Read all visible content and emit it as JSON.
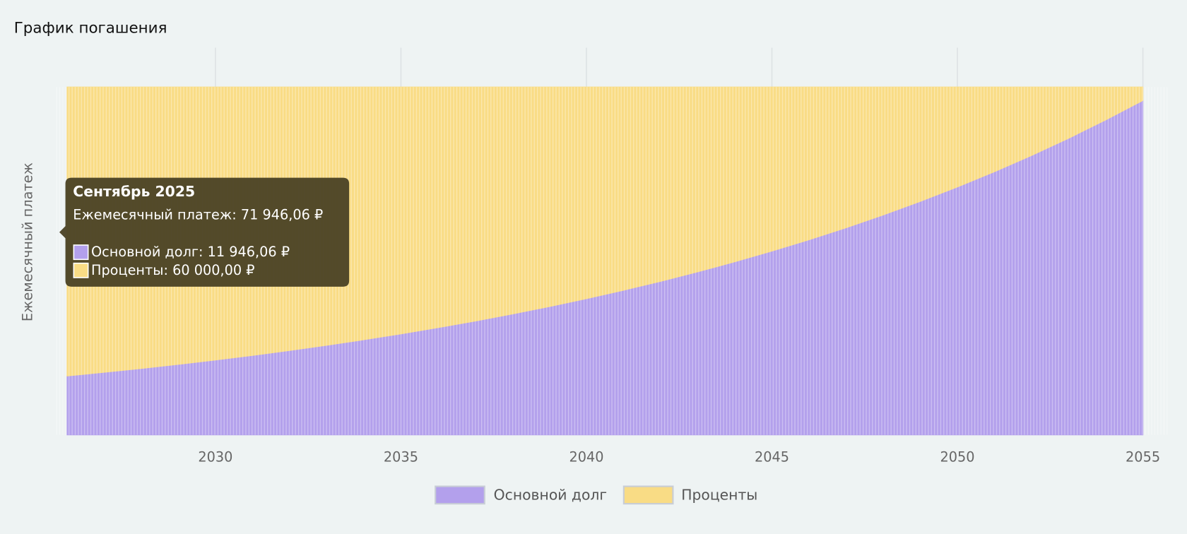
{
  "chart_data": {
    "type": "area",
    "stacked": true,
    "title": "График погашения",
    "y_label": "Ежемесячный платеж",
    "x": [
      2026,
      2027,
      2028,
      2029,
      2030,
      2031,
      2032,
      2033,
      2034,
      2035,
      2036,
      2037,
      2038,
      2039,
      2040,
      2041,
      2042,
      2043,
      2044,
      2045,
      2046,
      2047,
      2048,
      2049,
      2050,
      2051,
      2052,
      2053,
      2054,
      2055
    ],
    "series": [
      {
        "name": "Основной долг",
        "color": "#b3a0ec",
        "values": [
          12187,
          12939,
          13737,
          14584,
          15484,
          16439,
          17453,
          18530,
          19673,
          20886,
          22174,
          23542,
          24994,
          26536,
          28173,
          29911,
          31756,
          33715,
          35795,
          38003,
          40347,
          42836,
          45478,
          48283,
          51261,
          54423,
          57780,
          61344,
          65128,
          69146
        ]
      },
      {
        "name": "Проценты",
        "color": "#f9dc85",
        "values": [
          59759,
          59007,
          58209,
          57362,
          56462,
          55507,
          54493,
          53416,
          52273,
          51060,
          49772,
          48404,
          46952,
          45410,
          43773,
          42035,
          40190,
          38231,
          36151,
          33943,
          31599,
          29110,
          26468,
          23663,
          20685,
          17523,
          14166,
          10602,
          6818,
          2800
        ]
      }
    ],
    "xlim": [
      2025.67,
      2055.67
    ],
    "xticks": [
      2030,
      2035,
      2040,
      2045,
      2050,
      2055
    ],
    "ylim": [
      0,
      71946.06
    ],
    "grid": true,
    "legend": "bottom",
    "tooltip": {
      "title": "Сентябрь 2025",
      "total": "Ежемесячный платеж: 71 946,06 ₽",
      "items": [
        "Основной долг: 11 946,06 ₽",
        "Проценты: 60 000,00 ₽"
      ]
    }
  }
}
